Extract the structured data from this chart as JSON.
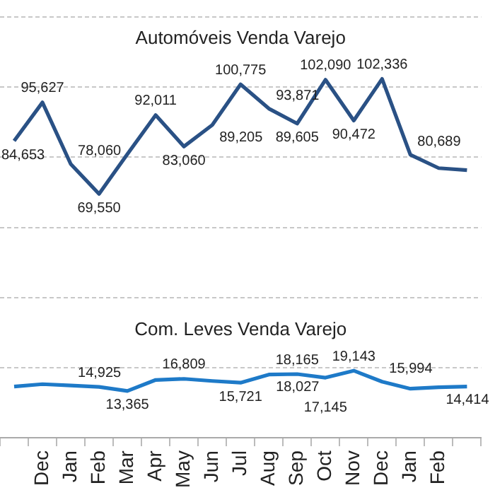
{
  "chart_data": {
    "type": "line",
    "categories": [
      null,
      "Dec",
      "Jan",
      "Feb",
      "Mar",
      "Apr",
      "May",
      "Jun",
      "Jul",
      "Aug",
      "Sep",
      "Oct",
      "Nov",
      "Dec",
      "Jan",
      "Feb",
      null
    ],
    "series": [
      {
        "name": "Automóveis Venda Varejo",
        "color": "#2a5185",
        "values": [
          84653,
          95627,
          78060,
          69550,
          80900,
          92011,
          83060,
          89205,
          100775,
          93871,
          89605,
          102090,
          90472,
          102336,
          80689,
          76900,
          76300
        ],
        "value_labels": [
          "84,653",
          "95,627",
          "78,060",
          "69,550",
          null,
          "92,011",
          "83,060",
          "89,205",
          "100,775",
          "93,871",
          "89,605",
          "102,090",
          "90,472",
          "102,336",
          "80,689",
          null,
          null
        ]
      },
      {
        "name": "Com. Leves Venda Varejo",
        "color": "#1e7ac8",
        "values": [
          14600,
          15300,
          14925,
          14500,
          13365,
          16500,
          16809,
          16200,
          15721,
          18027,
          18165,
          17145,
          19143,
          15994,
          14000,
          14414,
          14600
        ],
        "value_labels": [
          null,
          null,
          "14,925",
          null,
          "13,365",
          null,
          "16,809",
          null,
          "15,721",
          "18,027",
          "18,165",
          "17,145",
          "19,143",
          "15,994",
          null,
          "14,414",
          null
        ]
      }
    ],
    "ylim": [
      0,
      120000
    ],
    "yticks": [
      {
        "value": 0,
        "label": null
      },
      {
        "value": 20000,
        "label": null
      },
      {
        "value": 40000,
        "label": null
      },
      {
        "value": 60000,
        "label": null
      },
      {
        "value": 80000,
        "label": null
      },
      {
        "value": 100000,
        "label": null
      },
      {
        "value": 120000,
        "label": null
      }
    ],
    "grid": "y",
    "tick_labels": "x",
    "marker": "none",
    "data_labels": false
  }
}
